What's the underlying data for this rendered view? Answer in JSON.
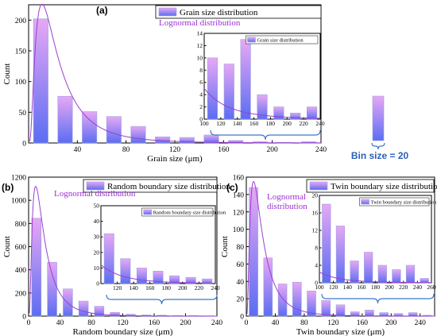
{
  "chart_data": [
    {
      "type": "bar",
      "panel_label": "(a)",
      "xlabel": "Grain size (μm)",
      "ylabel": "Count",
      "xlim": [
        0,
        240
      ],
      "ylim": [
        0,
        225
      ],
      "xticks": [
        40,
        80,
        120,
        160,
        200,
        240
      ],
      "yticks": [
        0,
        50,
        100,
        150,
        200
      ],
      "bin_size": 20,
      "bin_centers": [
        10,
        30,
        50,
        70,
        90,
        110,
        130,
        150,
        170,
        190,
        210,
        230
      ],
      "values": [
        202,
        76,
        51,
        43,
        27,
        10,
        9,
        13,
        4,
        2,
        1,
        2
      ],
      "legend": "Grain size distribution",
      "fit_label": "Lognormal distribution",
      "fit_peak": {
        "x": 11,
        "y": 226
      },
      "inset": {
        "legend": "Grain size distribution",
        "xlim": [
          100,
          240
        ],
        "ylim": [
          0,
          14
        ],
        "xticks": [
          100,
          120,
          140,
          160,
          180,
          200,
          220,
          240
        ],
        "yticks": [
          0,
          2,
          4,
          6,
          8,
          10,
          12,
          14
        ],
        "bin_centers": [
          110,
          130,
          150,
          170,
          190,
          210,
          230
        ],
        "values": [
          10,
          9,
          13,
          4,
          2,
          1,
          2
        ]
      }
    },
    {
      "type": "bar",
      "panel_label": "(b)",
      "xlabel": "Random boundary size (μm)",
      "ylabel": "Count",
      "xlim": [
        0,
        240
      ],
      "ylim": [
        0,
        1200
      ],
      "xticks": [
        0,
        40,
        80,
        120,
        160,
        200,
        240
      ],
      "yticks": [
        0,
        200,
        400,
        600,
        800,
        1000,
        1200
      ],
      "bin_size": 20,
      "bin_centers": [
        10,
        30,
        50,
        70,
        90,
        110,
        130,
        150,
        170,
        190,
        210,
        230
      ],
      "values": [
        845,
        465,
        235,
        130,
        85,
        32,
        16,
        10,
        8,
        5,
        4,
        3
      ],
      "legend": "Random boundary size distribution",
      "fit_label": "Lognormal distribution",
      "fit_peak": {
        "x": 9,
        "y": 1120
      },
      "inset": {
        "legend": "Random boundary size distribution",
        "xlim": [
          100,
          240
        ],
        "ylim": [
          0,
          50
        ],
        "xticks": [
          120,
          140,
          160,
          180,
          200,
          220,
          240
        ],
        "yticks": [
          0,
          10,
          20,
          30,
          40,
          50
        ],
        "bin_centers": [
          110,
          130,
          150,
          170,
          190,
          210,
          230
        ],
        "values": [
          32,
          16,
          10,
          8,
          5,
          4,
          3
        ]
      }
    },
    {
      "type": "bar",
      "panel_label": "(c)",
      "xlabel": "Twin boundary size (μm)",
      "ylabel": "Count",
      "xlim": [
        0,
        260
      ],
      "ylim": [
        0,
        160
      ],
      "xticks": [
        0,
        40,
        80,
        120,
        160,
        200,
        240
      ],
      "yticks": [
        0,
        20,
        40,
        60,
        80,
        100,
        120,
        140,
        160
      ],
      "bin_size": 20,
      "bin_centers": [
        10,
        30,
        50,
        70,
        90,
        110,
        130,
        150,
        170,
        190,
        210,
        230,
        250
      ],
      "values": [
        148,
        67,
        37,
        39,
        29,
        18,
        13,
        5,
        7,
        4,
        3,
        4,
        1
      ],
      "legend": "Twin boundary size distribution",
      "fit_label": "Lognormal distribution",
      "fit_peak": {
        "x": 10,
        "y": 155
      },
      "inset": {
        "legend": "Twin boundary size distribution",
        "xlim": [
          100,
          260
        ],
        "ylim": [
          0,
          20
        ],
        "xticks": [
          100,
          120,
          140,
          160,
          180,
          200,
          220,
          240,
          260
        ],
        "yticks": [
          0,
          4,
          8,
          12,
          16,
          20
        ],
        "bin_centers": [
          110,
          130,
          150,
          170,
          190,
          210,
          230,
          250
        ],
        "values": [
          18,
          13,
          5,
          7,
          4,
          3,
          4,
          1
        ]
      }
    }
  ],
  "bin_label": "Bin size = 20",
  "colors": {
    "bar_top": "#e7a8f4",
    "bar_bottom": "#5b6df2",
    "fit": "#9b3fd1",
    "brace": "#3a78c8",
    "bin_text": "#2a5fb8"
  }
}
